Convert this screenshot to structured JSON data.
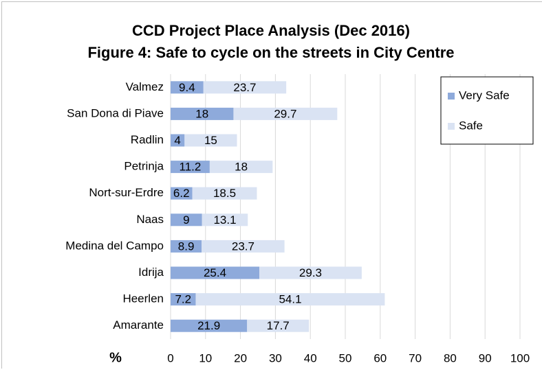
{
  "chart_data": {
    "type": "stacked_barh",
    "title": [
      "CCD Project Place Analysis (Dec 2016)",
      "Figure 4: Safe to cycle on the streets in City Centre"
    ],
    "xlabel": "%",
    "categories": [
      "Valmez",
      "San Dona di Piave",
      "Radlin",
      "Petrinja",
      "Nort-sur-Erdre",
      "Naas",
      "Medina del Campo",
      "Idrija",
      "Heerlen",
      "Amarante"
    ],
    "series": [
      {
        "name": "Very Safe",
        "color": "#8eaadb",
        "values": [
          9.4,
          18,
          4,
          11.2,
          6.2,
          9,
          8.9,
          25.4,
          7.2,
          21.9
        ]
      },
      {
        "name": "Safe",
        "color": "#dae3f3",
        "values": [
          23.7,
          29.7,
          15,
          18,
          18.5,
          13.1,
          23.7,
          29.3,
          54.1,
          17.7
        ]
      }
    ],
    "xlim": [
      0,
      100
    ],
    "xticks": [
      0,
      10,
      20,
      30,
      40,
      50,
      60,
      70,
      80,
      90,
      100
    ],
    "grid": true,
    "legend": "upper right"
  }
}
